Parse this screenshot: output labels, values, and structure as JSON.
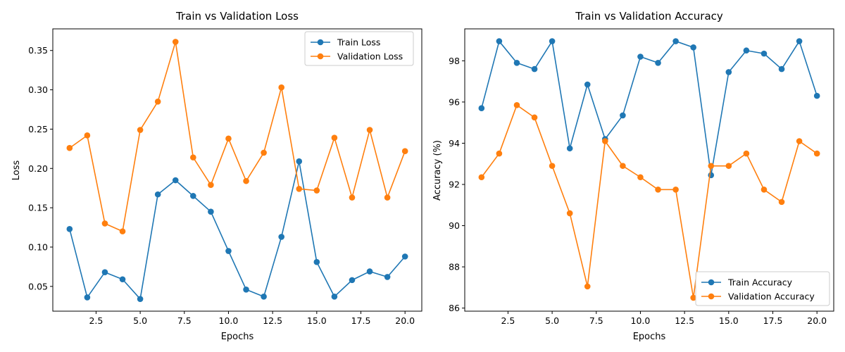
{
  "chart_data": [
    {
      "type": "line",
      "title": "Train vs Validation Loss",
      "xlabel": "Epochs",
      "ylabel": "Loss",
      "x": [
        1,
        2,
        3,
        4,
        5,
        6,
        7,
        8,
        9,
        10,
        11,
        12,
        13,
        14,
        15,
        16,
        17,
        18,
        19,
        20
      ],
      "xlim": [
        0.05,
        20.95
      ],
      "ylim": [
        0.0185,
        0.3775
      ],
      "xticks": [
        2.5,
        5.0,
        7.5,
        10.0,
        12.5,
        15.0,
        17.5,
        20.0
      ],
      "xtick_labels": [
        "2.5",
        "5.0",
        "7.5",
        "10.0",
        "12.5",
        "15.0",
        "17.5",
        "20.0"
      ],
      "yticks": [
        0.05,
        0.1,
        0.15,
        0.2,
        0.25,
        0.3,
        0.35
      ],
      "ytick_labels": [
        "0.05",
        "0.10",
        "0.15",
        "0.20",
        "0.25",
        "0.30",
        "0.35"
      ],
      "grid": false,
      "legend": "top-right",
      "series": [
        {
          "name": "Train Loss",
          "color": "#1f77b4",
          "values": [
            0.123,
            0.036,
            0.068,
            0.059,
            0.034,
            0.167,
            0.185,
            0.165,
            0.145,
            0.095,
            0.046,
            0.037,
            0.113,
            0.209,
            0.081,
            0.037,
            0.058,
            0.069,
            0.062,
            0.088
          ]
        },
        {
          "name": "Validation Loss",
          "color": "#ff7f0e",
          "values": [
            0.226,
            0.242,
            0.13,
            0.12,
            0.249,
            0.285,
            0.361,
            0.214,
            0.179,
            0.238,
            0.184,
            0.22,
            0.303,
            0.174,
            0.172,
            0.239,
            0.163,
            0.249,
            0.163,
            0.222
          ]
        }
      ]
    },
    {
      "type": "line",
      "title": "Train vs Validation Accuracy",
      "xlabel": "Epochs",
      "ylabel": "Accuracy (%)",
      "x": [
        1,
        2,
        3,
        4,
        5,
        6,
        7,
        8,
        9,
        10,
        11,
        12,
        13,
        14,
        15,
        16,
        17,
        18,
        19,
        20
      ],
      "xlim": [
        0.05,
        20.95
      ],
      "ylim": [
        85.85,
        99.55
      ],
      "xticks": [
        2.5,
        5.0,
        7.5,
        10.0,
        12.5,
        15.0,
        17.5,
        20.0
      ],
      "xtick_labels": [
        "2.5",
        "5.0",
        "7.5",
        "10.0",
        "12.5",
        "15.0",
        "17.5",
        "20.0"
      ],
      "yticks": [
        86,
        88,
        90,
        92,
        94,
        96,
        98
      ],
      "ytick_labels": [
        "86",
        "88",
        "90",
        "92",
        "94",
        "96",
        "98"
      ],
      "grid": false,
      "legend": "bottom-right",
      "series": [
        {
          "name": "Train Accuracy",
          "color": "#1f77b4",
          "values": [
            95.7,
            98.95,
            97.9,
            97.6,
            98.95,
            93.75,
            96.85,
            94.2,
            95.35,
            98.2,
            97.9,
            98.95,
            98.65,
            92.45,
            97.45,
            98.5,
            98.35,
            97.6,
            98.95,
            96.3
          ]
        },
        {
          "name": "Validation Accuracy",
          "color": "#ff7f0e",
          "values": [
            92.35,
            93.5,
            95.85,
            95.25,
            92.9,
            90.6,
            87.05,
            94.1,
            92.9,
            92.35,
            91.75,
            91.75,
            86.5,
            92.9,
            92.9,
            93.5,
            91.75,
            91.15,
            94.1,
            93.5
          ]
        }
      ]
    }
  ]
}
